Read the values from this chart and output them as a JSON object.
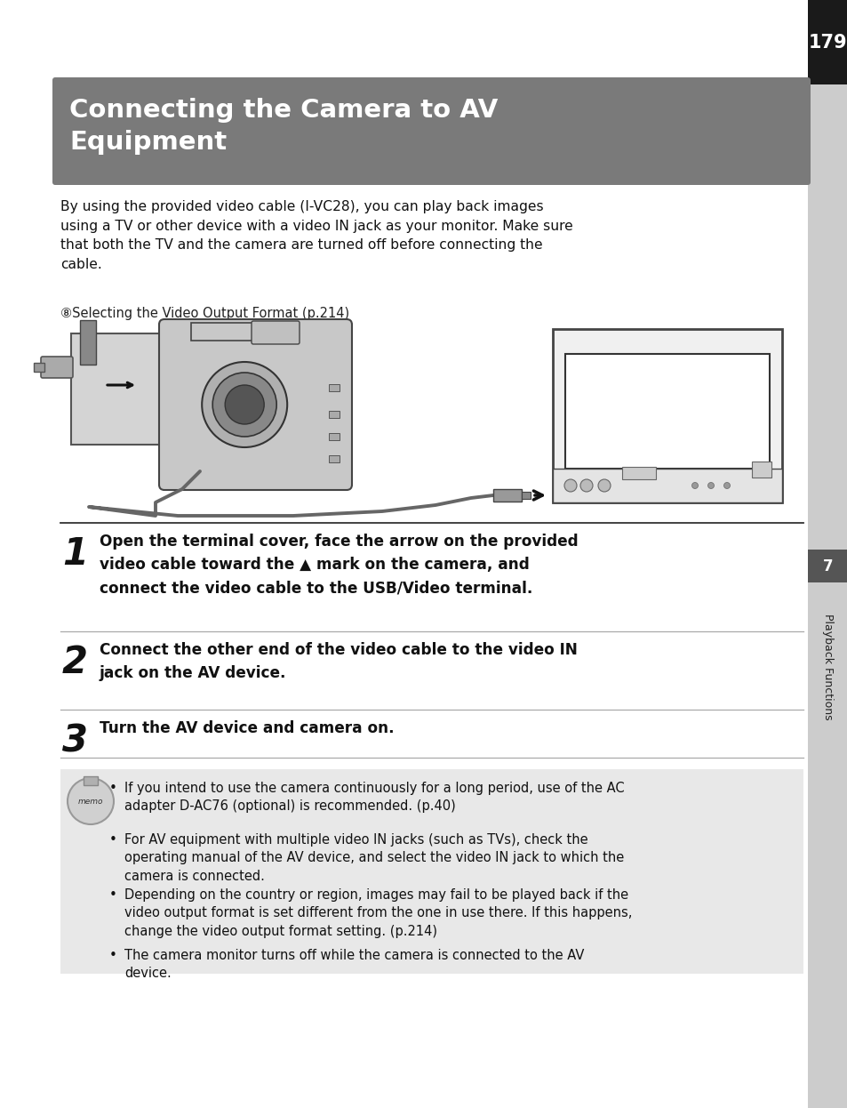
{
  "page_bg": "#ffffff",
  "title": "Connecting the Camera to AV\nEquipment",
  "title_bg": "#7a7a7a",
  "title_color": "#ffffff",
  "page_number": "179",
  "page_num_bg": "#1a1a1a",
  "page_num_color": "#ffffff",
  "sidebar_bg": "#cccccc",
  "sidebar_text": "Playback Functions",
  "intro_text": "By using the provided video cable (I-VC28), you can play back images\nusing a TV or other device with a video IN jack as your monitor. Make sure\nthat both the TV and the camera are turned off before connecting the\ncable.",
  "ref_text": "⑧Selecting the Video Output Format (p.214)",
  "step1_num": "1",
  "step1_text": "Open the terminal cover, face the arrow on the provided\nvideo cable toward the ▲ mark on the camera, and\nconnect the video cable to the USB/Video terminal.",
  "step2_num": "2",
  "step2_text": "Connect the other end of the video cable to the video IN\njack on the AV device.",
  "step3_num": "3",
  "step3_text": "Turn the AV device and camera on.",
  "memo_bg": "#e8e8e8",
  "memo_bullets": [
    "If you intend to use the camera continuously for a long period, use of the AC\nadapter D-AC76 (optional) is recommended. (p.40)",
    "For AV equipment with multiple video IN jacks (such as TVs), check the\noperating manual of the AV device, and select the video IN jack to which the\ncamera is connected.",
    "Depending on the country or region, images may fail to be played back if the\nvideo output format is set different from the one in use there. If this happens,\nchange the video output format setting. (p.214)",
    "The camera monitor turns off while the camera is connected to the AV\ndevice."
  ]
}
